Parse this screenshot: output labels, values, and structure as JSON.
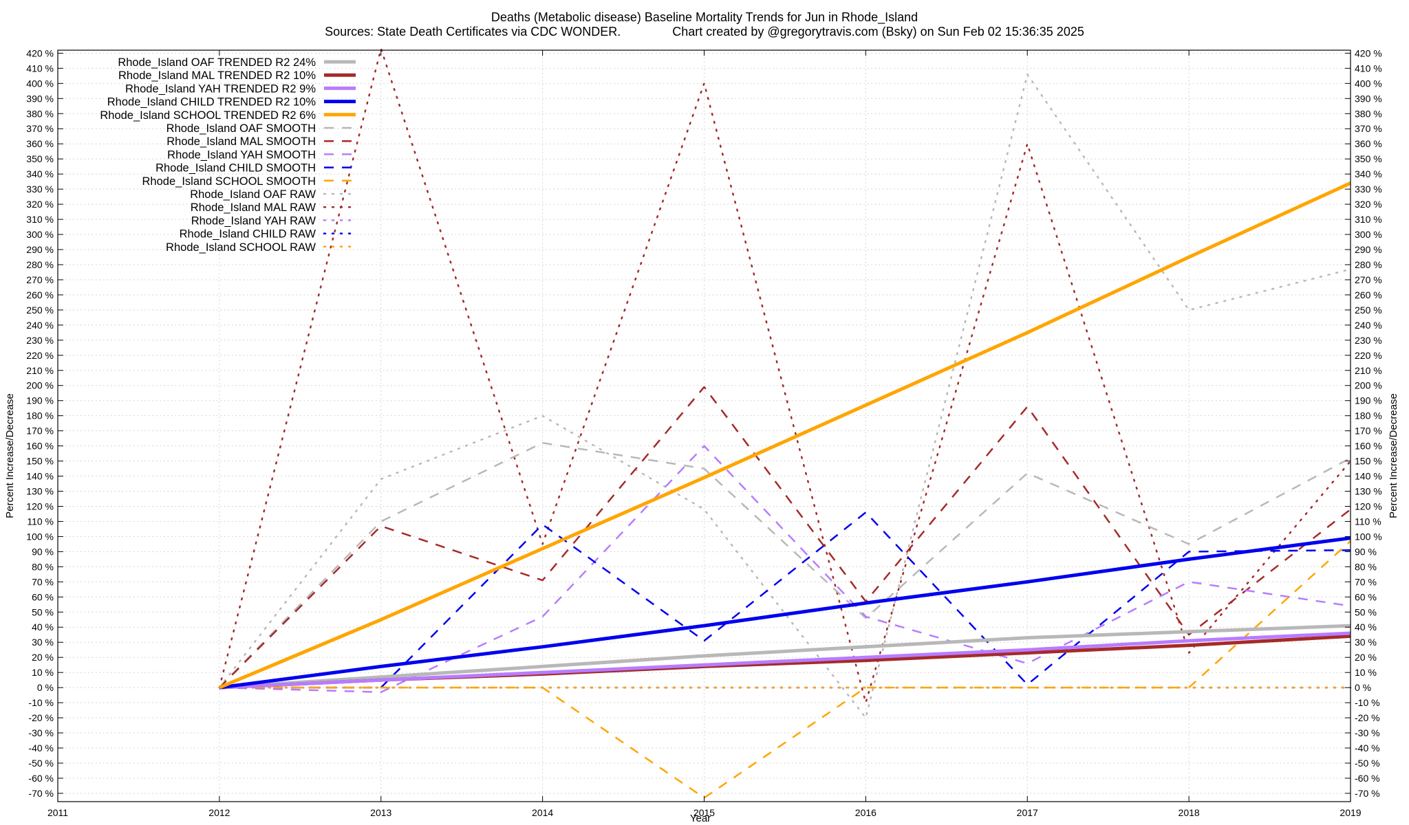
{
  "chart_data": {
    "type": "line",
    "title": "Deaths (Metabolic disease)  Baseline Mortality Trends for Jun in Rhode_Island",
    "subtitle": "Sources: State Death Certificates via CDC WONDER.               Chart created by @gregorytravis.com (Bsky) on Sun Feb 02 15:36:35 2025",
    "xlabel": "Year",
    "ylabel": "Percent Increase/Decrease",
    "y2label": "Percent Increase/Decrease",
    "xlim": [
      2011,
      2019
    ],
    "ylim": [
      -75,
      420
    ],
    "x_ticks": [
      "2011",
      "2012",
      "2013",
      "2014",
      "2015",
      "2016",
      "2017",
      "2018",
      "2019"
    ],
    "y_ticks": [
      420,
      410,
      400,
      390,
      380,
      370,
      360,
      350,
      340,
      330,
      320,
      310,
      300,
      290,
      280,
      270,
      260,
      250,
      240,
      230,
      220,
      210,
      200,
      190,
      180,
      170,
      160,
      150,
      140,
      130,
      120,
      110,
      100,
      90,
      80,
      70,
      60,
      50,
      40,
      30,
      20,
      10,
      0,
      -10,
      -20,
      -30,
      -40,
      -50,
      -60,
      -70
    ],
    "y_tick_suffix": " %",
    "grid": true,
    "legend_position": "top-left",
    "series": [
      {
        "name": "Rhode_Island OAF TRENDED R2  24%",
        "color": "#b8b8b8",
        "style": "solid",
        "width": 5,
        "x": [
          2012,
          2013,
          2014,
          2015,
          2016,
          2017,
          2018,
          2019
        ],
        "y": [
          0,
          7,
          14,
          21,
          27,
          33,
          37,
          41
        ]
      },
      {
        "name": "Rhode_Island MAL TRENDED R2  10%",
        "color": "#a52a2a",
        "style": "solid",
        "width": 5,
        "x": [
          2012,
          2013,
          2014,
          2015,
          2016,
          2017,
          2018,
          2019
        ],
        "y": [
          0,
          5,
          9,
          14,
          18,
          23,
          28,
          34
        ]
      },
      {
        "name": "Rhode_Island YAH TRENDED R2   9%",
        "color": "#b77cff",
        "style": "solid",
        "width": 5,
        "x": [
          2012,
          2013,
          2014,
          2015,
          2016,
          2017,
          2018,
          2019
        ],
        "y": [
          0,
          5,
          10,
          15,
          20,
          25,
          31,
          36
        ]
      },
      {
        "name": "Rhode_Island CHILD TRENDED R2  10%",
        "color": "#0000ee",
        "style": "solid",
        "width": 5,
        "x": [
          2012,
          2013,
          2014,
          2015,
          2016,
          2017,
          2018,
          2019
        ],
        "y": [
          0,
          14,
          27,
          41,
          56,
          70,
          85,
          99
        ]
      },
      {
        "name": "Rhode_Island SCHOOL TRENDED R2   6%",
        "color": "#ffa500",
        "style": "solid",
        "width": 5,
        "x": [
          2012,
          2013,
          2014,
          2015,
          2016,
          2017,
          2018,
          2019
        ],
        "y": [
          0,
          45,
          92,
          139,
          187,
          235,
          285,
          334
        ]
      },
      {
        "name": "Rhode_Island OAF SMOOTH",
        "color": "#b8b8b8",
        "style": "dashed",
        "width": 2.5,
        "x": [
          2012,
          2013,
          2014,
          2015,
          2016,
          2017,
          2018,
          2019
        ],
        "y": [
          0,
          110,
          162,
          145,
          46,
          142,
          95,
          152
        ]
      },
      {
        "name": "Rhode_Island MAL SMOOTH",
        "color": "#a52a2a",
        "style": "dashed",
        "width": 2.5,
        "x": [
          2012,
          2013,
          2014,
          2015,
          2016,
          2017,
          2018,
          2019
        ],
        "y": [
          0,
          107,
          71,
          199,
          57,
          186,
          35,
          118
        ]
      },
      {
        "name": "Rhode_Island YAH SMOOTH",
        "color": "#b77cff",
        "style": "dashed",
        "width": 2.5,
        "x": [
          2012,
          2013,
          2014,
          2015,
          2016,
          2017,
          2018,
          2019
        ],
        "y": [
          0,
          -3,
          47,
          160,
          47,
          16,
          70,
          54
        ]
      },
      {
        "name": "Rhode_Island CHILD SMOOTH",
        "color": "#0000ee",
        "style": "dashed",
        "width": 2.5,
        "x": [
          2012,
          2013,
          2014,
          2015,
          2016,
          2017,
          2018,
          2019
        ],
        "y": [
          0,
          0,
          108,
          31,
          116,
          2,
          90,
          91
        ]
      },
      {
        "name": "Rhode_Island SCHOOL SMOOTH",
        "color": "#ffa500",
        "style": "dashed",
        "width": 2.5,
        "x": [
          2012,
          2013,
          2014,
          2015,
          2016,
          2017,
          2018,
          2019
        ],
        "y": [
          0,
          0,
          0,
          -73,
          0,
          0,
          0,
          97
        ]
      },
      {
        "name": "Rhode_Island OAF RAW",
        "color": "#b8b8b8",
        "style": "dotted",
        "width": 2.5,
        "x": [
          2012,
          2013,
          2014,
          2015,
          2016,
          2017,
          2018,
          2019
        ],
        "y": [
          0,
          138,
          180,
          118,
          -20,
          406,
          250,
          277
        ]
      },
      {
        "name": "Rhode_Island MAL RAW",
        "color": "#a52a2a",
        "style": "dotted",
        "width": 2.5,
        "x": [
          2012,
          2013,
          2014,
          2015,
          2016,
          2017,
          2018,
          2019
        ],
        "y": [
          0,
          423,
          95,
          400,
          -10,
          360,
          23,
          150
        ]
      },
      {
        "name": "Rhode_Island YAH RAW",
        "color": "#b77cff",
        "style": "dotted",
        "width": 2.5,
        "x": [
          2012,
          2013,
          2014,
          2015,
          2016,
          2017,
          2018,
          2019
        ],
        "y": [
          0,
          0,
          0,
          0,
          0,
          0,
          0,
          0
        ]
      },
      {
        "name": "Rhode_Island CHILD RAW",
        "color": "#0000ee",
        "style": "dotted",
        "width": 2.5,
        "x": [
          2012,
          2013,
          2014,
          2015,
          2016,
          2017,
          2018,
          2019
        ],
        "y": [
          0,
          0,
          0,
          0,
          0,
          0,
          0,
          0
        ]
      },
      {
        "name": "Rhode_Island SCHOOL RAW",
        "color": "#ffa500",
        "style": "dotted",
        "width": 2.5,
        "x": [
          2012,
          2013,
          2014,
          2015,
          2016,
          2017,
          2018,
          2019
        ],
        "y": [
          0,
          0,
          0,
          0,
          0,
          0,
          0,
          0
        ]
      }
    ]
  }
}
